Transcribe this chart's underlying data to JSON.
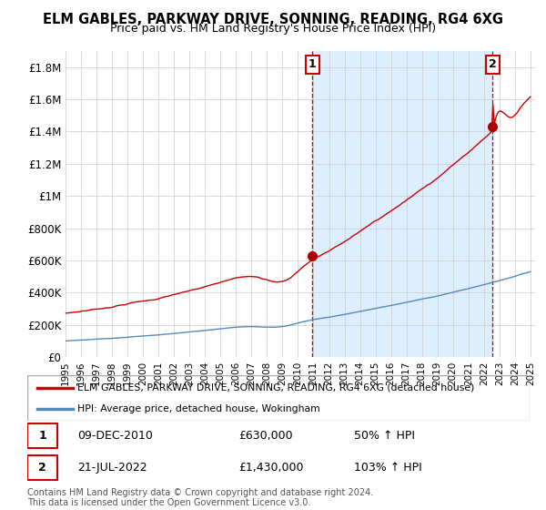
{
  "title": "ELM GABLES, PARKWAY DRIVE, SONNING, READING, RG4 6XG",
  "subtitle": "Price paid vs. HM Land Registry's House Price Index (HPI)",
  "ylim": [
    0,
    1900000
  ],
  "yticks": [
    0,
    200000,
    400000,
    600000,
    800000,
    1000000,
    1200000,
    1400000,
    1600000,
    1800000
  ],
  "ytick_labels": [
    "£0",
    "£200K",
    "£400K",
    "£600K",
    "£800K",
    "£1M",
    "£1.2M",
    "£1.4M",
    "£1.6M",
    "£1.8M"
  ],
  "xlim_start": 1995.0,
  "xlim_end": 2025.3,
  "xticks": [
    1995,
    1996,
    1997,
    1998,
    1999,
    2000,
    2001,
    2002,
    2003,
    2004,
    2005,
    2006,
    2007,
    2008,
    2009,
    2010,
    2011,
    2012,
    2013,
    2014,
    2015,
    2016,
    2017,
    2018,
    2019,
    2020,
    2021,
    2022,
    2023,
    2024,
    2025
  ],
  "sale1_x": 2010.92,
  "sale1_y": 630000,
  "sale1_label": "1",
  "sale1_date": "09-DEC-2010",
  "sale1_price": "£630,000",
  "sale1_hpi": "50% ↑ HPI",
  "sale2_x": 2022.55,
  "sale2_y": 1430000,
  "sale2_label": "2",
  "sale2_date": "21-JUL-2022",
  "sale2_price": "£1,430,000",
  "sale2_hpi": "103% ↑ HPI",
  "sale_marker_color": "#aa0000",
  "sale_vline_color": "#cc0000",
  "hpi_line_color": "#5588bb",
  "price_line_color": "#cc0000",
  "shade_color": "#ddeeff",
  "legend_label_price": "ELM GABLES, PARKWAY DRIVE, SONNING, READING, RG4 6XG (detached house)",
  "legend_label_hpi": "HPI: Average price, detached house, Wokingham",
  "footnote": "Contains HM Land Registry data © Crown copyright and database right 2024.\nThis data is licensed under the Open Government Licence v3.0.",
  "background_color": "#ffffff",
  "grid_color": "#cccccc"
}
